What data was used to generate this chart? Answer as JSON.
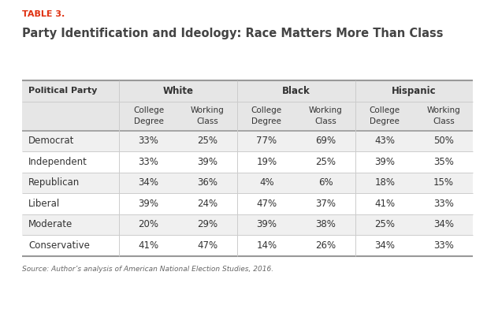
{
  "table_label": "TABLE 3.",
  "title": "Party Identification and Ideology: Race Matters More Than Class",
  "source": "Source: Author’s analysis of American National Election Studies, 2016.",
  "col_groups": [
    "White",
    "Black",
    "Hispanic"
  ],
  "col_subheaders": [
    "College\nDegree",
    "Working\nClass"
  ],
  "row_labels": [
    "Democrat",
    "Independent",
    "Republican",
    "Liberal",
    "Moderate",
    "Conservative"
  ],
  "data": [
    [
      "33%",
      "25%",
      "77%",
      "69%",
      "43%",
      "50%"
    ],
    [
      "33%",
      "39%",
      "19%",
      "25%",
      "39%",
      "35%"
    ],
    [
      "34%",
      "36%",
      "4%",
      "6%",
      "18%",
      "15%"
    ],
    [
      "39%",
      "24%",
      "47%",
      "37%",
      "41%",
      "33%"
    ],
    [
      "20%",
      "29%",
      "39%",
      "38%",
      "25%",
      "34%"
    ],
    [
      "41%",
      "47%",
      "14%",
      "26%",
      "34%",
      "33%"
    ]
  ],
  "bg_color": "#ffffff",
  "header_bg": "#e6e6e6",
  "row_alt_bg": "#f0f0f0",
  "row_bg": "#ffffff",
  "table_label_color": "#e03010",
  "title_color": "#444444",
  "text_color": "#333333",
  "source_color": "#666666",
  "border_thick_color": "#999999",
  "border_thin_color": "#cccccc",
  "political_party_header": "Political Party"
}
